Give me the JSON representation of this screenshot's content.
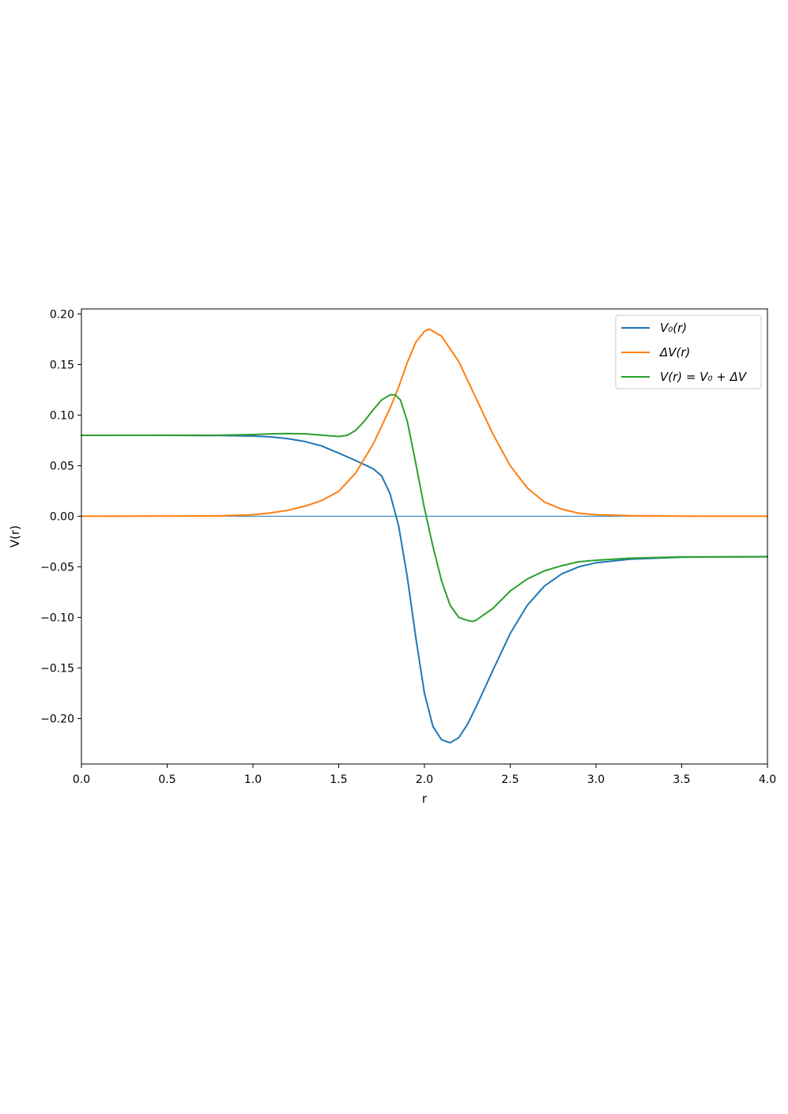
{
  "chart_data": {
    "type": "line",
    "xlabel": "r",
    "ylabel": "V(r)",
    "xlim": [
      0.0,
      4.0
    ],
    "ylim": [
      -0.245,
      0.205
    ],
    "xticks": [
      0.0,
      0.5,
      1.0,
      1.5,
      2.0,
      2.5,
      3.0,
      3.5,
      4.0
    ],
    "xtick_labels": [
      "0.0",
      "0.5",
      "1.0",
      "1.5",
      "2.0",
      "2.5",
      "3.0",
      "3.5",
      "4.0"
    ],
    "yticks": [
      0.2,
      0.15,
      0.1,
      0.05,
      0.0,
      -0.05,
      -0.1,
      -0.15,
      -0.2
    ],
    "ytick_labels": [
      "0.20",
      "0.15",
      "0.10",
      "0.05",
      "0.00",
      "−0.05",
      "−0.10",
      "−0.15",
      "−0.20"
    ],
    "grid": false,
    "legend_position": "top-right",
    "legend": {
      "v0": "V₀(r)",
      "dv": "ΔV(r)",
      "vt": "V(r) = V₀ + ΔV"
    },
    "baseline": {
      "y": 0.0,
      "color": "#1f77b4"
    },
    "series": [
      {
        "name": "V₀(r)",
        "color": "#1f77b4",
        "x": [
          0.0,
          0.5,
          0.8,
          1.0,
          1.1,
          1.2,
          1.3,
          1.4,
          1.5,
          1.6,
          1.7,
          1.75,
          1.8,
          1.85,
          1.9,
          1.95,
          2.0,
          2.05,
          2.1,
          2.15,
          2.2,
          2.25,
          2.3,
          2.4,
          2.5,
          2.6,
          2.7,
          2.8,
          2.9,
          3.0,
          3.2,
          3.5,
          4.0
        ],
        "y": [
          0.08,
          0.08,
          0.0798,
          0.0793,
          0.0785,
          0.0768,
          0.074,
          0.0695,
          0.0625,
          0.055,
          0.047,
          0.04,
          0.022,
          -0.01,
          -0.06,
          -0.12,
          -0.175,
          -0.208,
          -0.221,
          -0.224,
          -0.219,
          -0.206,
          -0.189,
          -0.152,
          -0.116,
          -0.088,
          -0.069,
          -0.057,
          -0.05,
          -0.046,
          -0.0425,
          -0.0405,
          -0.04
        ]
      },
      {
        "name": "ΔV(r)",
        "color": "#ff7f0e",
        "x": [
          0.0,
          0.8,
          1.0,
          1.1,
          1.2,
          1.3,
          1.4,
          1.5,
          1.6,
          1.7,
          1.8,
          1.85,
          1.9,
          1.95,
          2.0,
          2.03,
          2.1,
          2.2,
          2.3,
          2.4,
          2.5,
          2.6,
          2.7,
          2.8,
          2.9,
          3.0,
          3.2,
          3.5,
          4.0
        ],
        "y": [
          0.0,
          0.0003,
          0.0015,
          0.0032,
          0.0058,
          0.0098,
          0.0155,
          0.0245,
          0.043,
          0.071,
          0.107,
          0.128,
          0.152,
          0.172,
          0.183,
          0.185,
          0.178,
          0.153,
          0.117,
          0.081,
          0.05,
          0.028,
          0.014,
          0.007,
          0.003,
          0.0015,
          0.0005,
          0.0001,
          0.0
        ]
      },
      {
        "name": "V(r) = V₀ + ΔV",
        "color": "#2ca02c",
        "x": [
          0.0,
          0.8,
          1.0,
          1.1,
          1.2,
          1.3,
          1.4,
          1.5,
          1.55,
          1.6,
          1.65,
          1.7,
          1.75,
          1.8,
          1.83,
          1.86,
          1.9,
          1.95,
          2.0,
          2.05,
          2.1,
          2.15,
          2.2,
          2.25,
          2.28,
          2.3,
          2.4,
          2.5,
          2.6,
          2.7,
          2.8,
          2.9,
          3.0,
          3.2,
          3.5,
          4.0
        ],
        "y": [
          0.08,
          0.0801,
          0.0808,
          0.0815,
          0.0818,
          0.0816,
          0.0802,
          0.0788,
          0.08,
          0.085,
          0.094,
          0.105,
          0.115,
          0.12,
          0.12,
          0.115,
          0.094,
          0.052,
          0.008,
          -0.03,
          -0.064,
          -0.088,
          -0.1,
          -0.103,
          -0.104,
          -0.103,
          -0.091,
          -0.074,
          -0.062,
          -0.054,
          -0.049,
          -0.045,
          -0.0435,
          -0.0415,
          -0.0402,
          -0.04
        ]
      }
    ]
  }
}
